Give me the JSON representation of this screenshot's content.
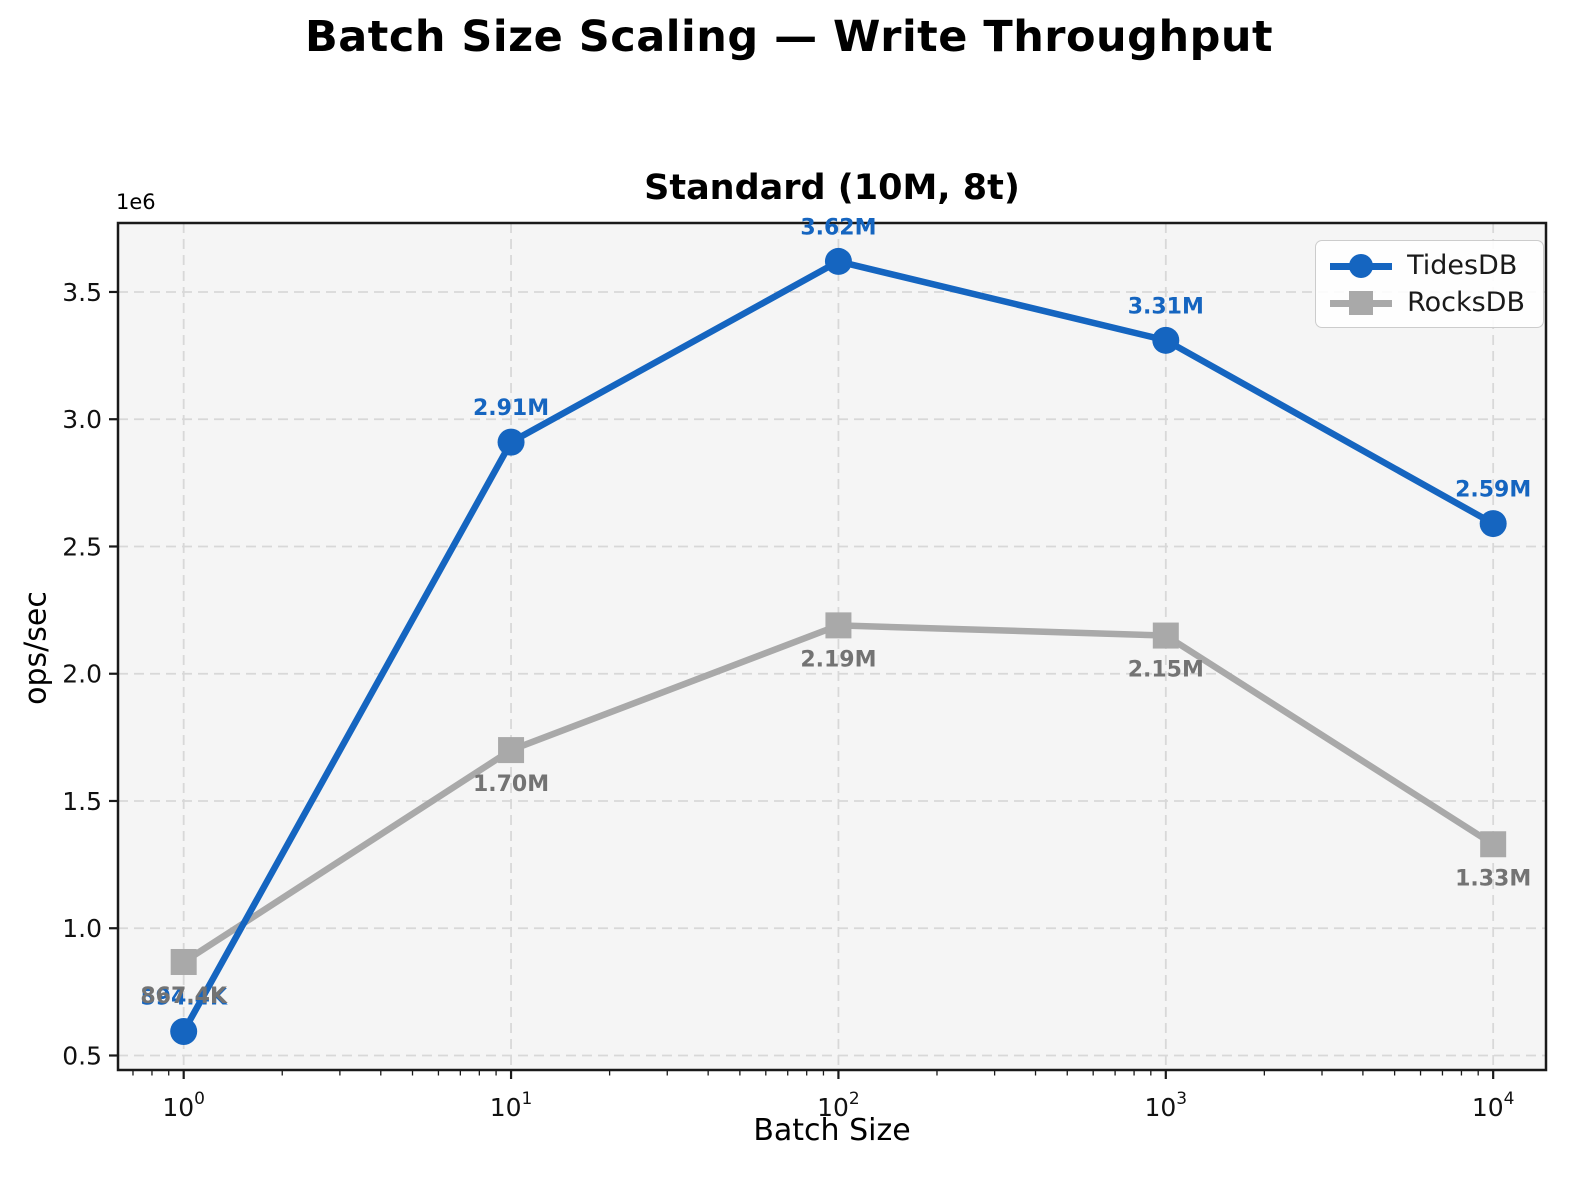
{
  "figure_title": "Batch Size Scaling — Write Throughput",
  "colors": {
    "tidesdb_blue": "#1565C0",
    "rocksdb_gray": "#a9a9a9",
    "rocksdb_label_gray": "#737373",
    "plot_background": "#f5f5f5",
    "grid_line": "#d8d8d8",
    "axis_spine": "#1a1a1a",
    "tick_text": "#111111"
  },
  "chart_data": {
    "type": "line",
    "title": "Standard (10M, 8t)",
    "xlabel": "Batch Size",
    "ylabel": "ops/sec",
    "y_offset_text": "1e6",
    "x_scale": "log",
    "grid": true,
    "legend_position": "upper right",
    "x": [
      1,
      10,
      100,
      1000,
      10000
    ],
    "xlim": [
      0.63,
      14500
    ],
    "ylim": [
      443000,
      3771000
    ],
    "yticks": [
      500000,
      1000000,
      1500000,
      2000000,
      2500000,
      3000000,
      3500000
    ],
    "ytick_labels": [
      "0.5",
      "1.0",
      "1.5",
      "2.0",
      "2.5",
      "3.0",
      "3.5"
    ],
    "xtick_labels": [
      {
        "base": "10",
        "exp": "0"
      },
      {
        "base": "10",
        "exp": "1"
      },
      {
        "base": "10",
        "exp": "2"
      },
      {
        "base": "10",
        "exp": "3"
      },
      {
        "base": "10",
        "exp": "4"
      }
    ],
    "series": [
      {
        "name": "TidesDB",
        "marker": "circle",
        "color": "#1565C0",
        "label_color": "#1565C0",
        "values": [
          594400,
          2910000,
          3620000,
          3310000,
          2590000
        ],
        "point_labels": [
          "594.4K",
          "2.91M",
          "3.62M",
          "3.31M",
          "2.59M"
        ]
      },
      {
        "name": "RocksDB",
        "marker": "square",
        "color": "#a9a9a9",
        "label_color": "#737373",
        "values": [
          867400,
          1700000,
          2190000,
          2150000,
          1330000
        ],
        "point_labels": [
          "867.4K",
          "1.70M",
          "2.19M",
          "2.15M",
          "1.33M"
        ]
      }
    ]
  }
}
